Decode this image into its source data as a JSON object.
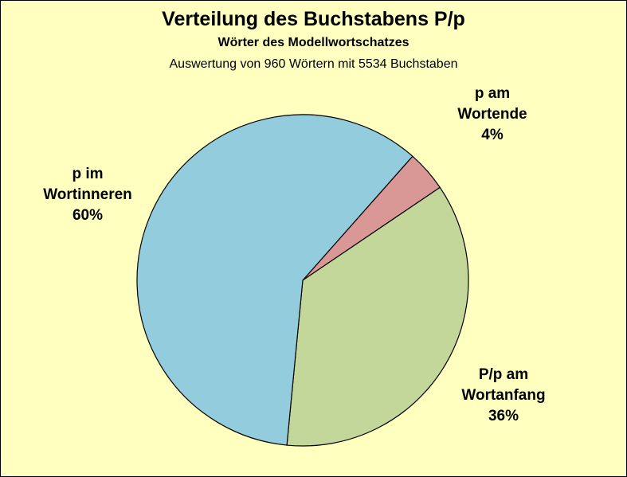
{
  "chart_data": {
    "type": "pie",
    "title": "Verteilung des Buchstabens P/p",
    "subtitle": "Wörter des Modellwortschatzes",
    "subtitle2": "Auswertung von 960 Wörtern mit 5534 Buchstaben",
    "slices": [
      {
        "label": [
          "p am",
          "Wortende",
          "4%"
        ],
        "value": 4,
        "color": "#d99795"
      },
      {
        "label": [
          "P/p am",
          "Wortanfang",
          "36%"
        ],
        "value": 36,
        "color": "#c4d79b"
      },
      {
        "label": [
          "p im",
          "Wortinneren",
          "60%"
        ],
        "value": 60,
        "color": "#93ccdd"
      }
    ]
  }
}
